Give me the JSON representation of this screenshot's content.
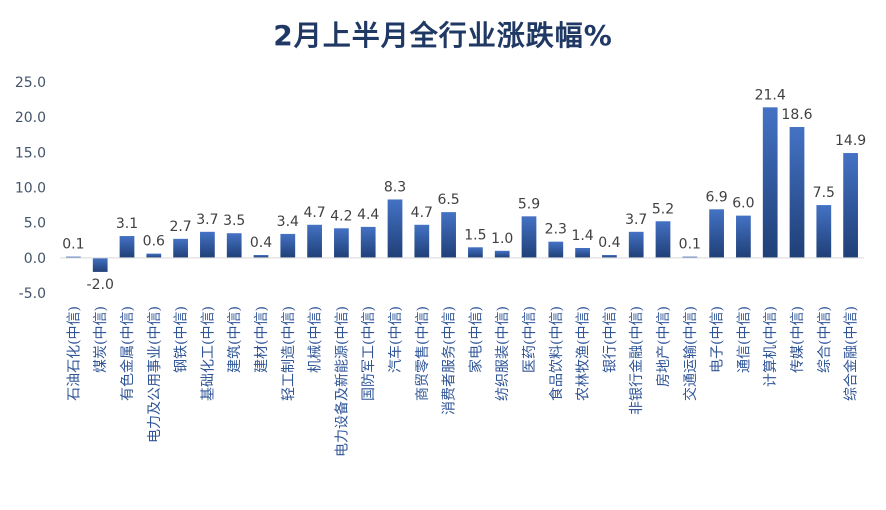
{
  "chart_data": {
    "type": "bar",
    "title": "2月上半月全行业涨跌幅%",
    "categories": [
      "石油石化(中信)",
      "煤炭(中信)",
      "有色金属(中信)",
      "电力及公用事业(中信)",
      "钢铁(中信)",
      "基础化工(中信)",
      "建筑(中信)",
      "建材(中信)",
      "轻工制造(中信)",
      "机械(中信)",
      "电力设备及新能源(中信)",
      "国防军工(中信)",
      "汽车(中信)",
      "商贸零售(中信)",
      "消费者服务(中信)",
      "家电(中信)",
      "纺织服装(中信)",
      "医药(中信)",
      "食品饮料(中信)",
      "农林牧渔(中信)",
      "银行(中信)",
      "非银行金融(中信)",
      "房地产(中信)",
      "交通运输(中信)",
      "电子(中信)",
      "通信(中信)",
      "计算机(中信)",
      "传媒(中信)",
      "综合(中信)",
      "综合金融(中信)"
    ],
    "values": [
      0.1,
      -2.0,
      3.1,
      0.6,
      2.7,
      3.7,
      3.5,
      0.4,
      3.4,
      4.7,
      4.2,
      4.4,
      8.3,
      4.7,
      6.5,
      1.5,
      1.0,
      5.9,
      2.3,
      1.4,
      0.4,
      3.7,
      5.2,
      0.1,
      6.9,
      6.0,
      21.4,
      18.6,
      7.5,
      14.9
    ],
    "data_labels": [
      "0.1",
      "-2.0",
      "3.1",
      "0.6",
      "2.7",
      "3.7",
      "3.5",
      "0.4",
      "3.4",
      "4.7",
      "4.2",
      "4.4",
      "8.3",
      "4.7",
      "6.5",
      "1.5",
      "1.0",
      "5.9",
      "2.3",
      "1.4",
      "0.4",
      "3.7",
      "5.2",
      "0.1",
      "6.9",
      "6.0",
      "21.4",
      "18.6",
      "7.5",
      "14.9"
    ],
    "y_ticks": [
      "-5.0",
      "0.0",
      "5.0",
      "10.0",
      "15.0",
      "20.0",
      "25.0"
    ],
    "ylim": [
      -5,
      25
    ],
    "grid": false,
    "legend": "none",
    "bar_color_top": "#4472c4",
    "bar_color_bottom": "#1f3f77",
    "axis_color": "#d9d9d9"
  }
}
